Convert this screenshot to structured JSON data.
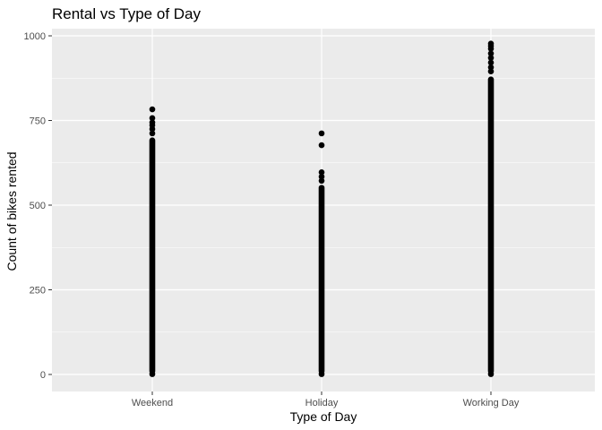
{
  "chart_data": {
    "type": "scatter",
    "title": "Rental vs Type of Day",
    "xlabel": "Type of Day",
    "ylabel": "Count of bikes rented",
    "categories": [
      "Weekend",
      "Holiday",
      "Working Day"
    ],
    "ylim": [
      0,
      1000
    ],
    "yticks": [
      0,
      250,
      500,
      750,
      1000
    ],
    "grid": true,
    "legend": "none",
    "point_color": "#000000",
    "panel_color": "#ebebeb",
    "grid_color": "#ffffff",
    "series": [
      {
        "category": "Weekend",
        "min": 1,
        "max_dense": 700,
        "outliers": [
          783,
          757,
          744,
          736,
          725,
          712
        ]
      },
      {
        "category": "Holiday",
        "min": 1,
        "max_dense": 560,
        "outliers": [
          712,
          677,
          597,
          584,
          572
        ]
      },
      {
        "category": "Working Day",
        "min": 1,
        "max_dense": 880,
        "outliers": [
          977,
          970,
          962,
          948,
          935,
          921,
          907,
          895
        ]
      }
    ]
  }
}
